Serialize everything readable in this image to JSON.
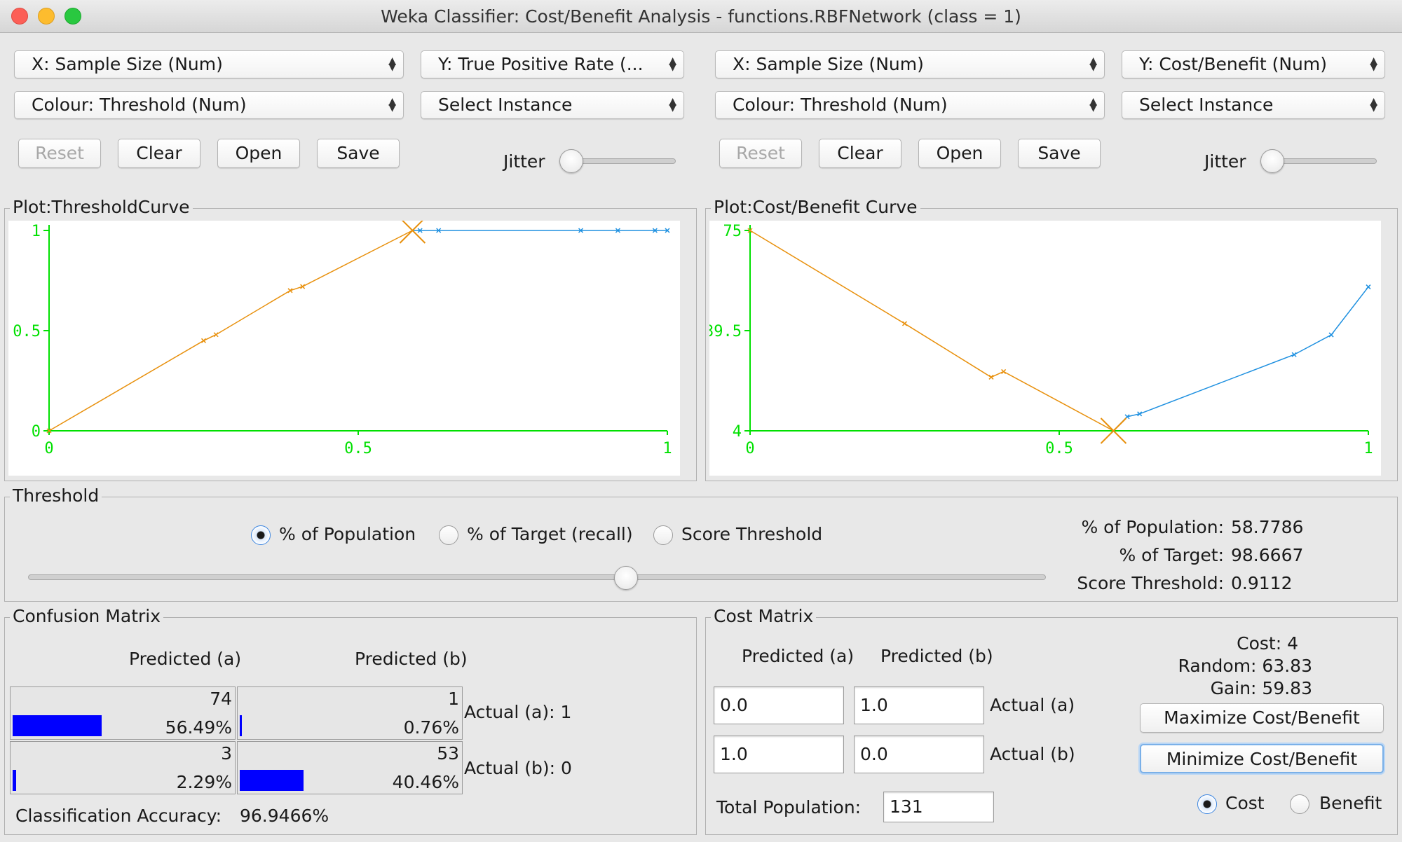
{
  "window": {
    "title": "Weka Classifier: Cost/Benefit Analysis - functions.RBFNetwork (class = 1)"
  },
  "left_panel": {
    "x_axis": "X: Sample Size (Num)",
    "y_axis": "Y: True Positive Rate (...",
    "colour": "Colour: Threshold (Num)",
    "select_instance": "Select Instance",
    "buttons": {
      "reset": "Reset",
      "clear": "Clear",
      "open": "Open",
      "save": "Save"
    },
    "jitter_label": "Jitter",
    "plot_title": "Plot:ThresholdCurve"
  },
  "right_panel": {
    "x_axis": "X: Sample Size (Num)",
    "y_axis": "Y: Cost/Benefit (Num)",
    "colour": "Colour: Threshold (Num)",
    "select_instance": "Select Instance",
    "buttons": {
      "reset": "Reset",
      "clear": "Clear",
      "open": "Open",
      "save": "Save"
    },
    "jitter_label": "Jitter",
    "plot_title": "Plot:Cost/Benefit Curve"
  },
  "chart_data": [
    {
      "type": "line",
      "title": "Plot:ThresholdCurve",
      "xlabel": "Sample Size",
      "ylabel": "True Positive Rate",
      "x_ticks": [
        "0",
        "0.5",
        "1"
      ],
      "y_ticks": [
        "0",
        "0.5",
        "1"
      ],
      "xlim": [
        0,
        1
      ],
      "ylim": [
        0,
        1
      ],
      "series": [
        {
          "color": "#e8900c",
          "x": [
            0,
            0.25,
            0.27,
            0.39,
            0.41,
            0.5878
          ],
          "y": [
            0,
            0.45,
            0.48,
            0.7,
            0.72,
            1.0
          ]
        },
        {
          "color": "#1e90e0",
          "x": [
            0.5878,
            0.6,
            0.63,
            0.86,
            0.92,
            0.98,
            1.0
          ],
          "y": [
            1.0,
            1.0,
            1.0,
            1.0,
            1.0,
            1.0,
            1.0
          ]
        }
      ],
      "marker": {
        "x": 0.5878,
        "y": 1.0,
        "symbol": "X"
      }
    },
    {
      "type": "line",
      "title": "Plot:Cost/Benefit Curve",
      "xlabel": "Sample Size",
      "ylabel": "Cost/Benefit",
      "x_ticks": [
        "0",
        "0.5",
        "1"
      ],
      "y_ticks": [
        "4",
        "39.5",
        "75"
      ],
      "xlim": [
        0,
        1
      ],
      "ylim": [
        4,
        75
      ],
      "series": [
        {
          "color": "#e8900c",
          "x": [
            0,
            0.25,
            0.39,
            0.41,
            0.5878
          ],
          "y": [
            75,
            42,
            23,
            25,
            4
          ]
        },
        {
          "color": "#1e90e0",
          "x": [
            0.5878,
            0.61,
            0.63,
            0.88,
            0.94,
            1.0
          ],
          "y": [
            4,
            9,
            10,
            31,
            38,
            55
          ]
        }
      ],
      "marker": {
        "x": 0.5878,
        "y": 4,
        "symbol": "X"
      }
    }
  ],
  "threshold": {
    "title": "Threshold",
    "options": [
      "% of Population",
      "% of Target (recall)",
      "Score Threshold"
    ],
    "selected": 0,
    "slider_fraction": 0.5878,
    "stats": {
      "population_label": "% of Population:",
      "population_value": "58.7786",
      "target_label": "% of Target:",
      "target_value": "98.6667",
      "score_label": "Score Threshold:",
      "score_value": "0.9112"
    }
  },
  "confusion": {
    "title": "Confusion Matrix",
    "col_a": "Predicted (a)",
    "col_b": "Predicted (b)",
    "cells": [
      {
        "count": "74",
        "pct": "56.49%",
        "fraction": 0.5649
      },
      {
        "count": "1",
        "pct": "0.76%",
        "fraction": 0.0076
      },
      {
        "count": "3",
        "pct": "2.29%",
        "fraction": 0.0229
      },
      {
        "count": "53",
        "pct": "40.46%",
        "fraction": 0.4046
      }
    ],
    "row_a": "Actual (a): 1",
    "row_b": "Actual (b):  0",
    "accuracy_label": "Classification Accuracy:",
    "accuracy_value": "96.9466%"
  },
  "cost": {
    "title": "Cost Matrix",
    "col_a": "Predicted (a)",
    "col_b": "Predicted (b)",
    "values": [
      "0.0",
      "1.0",
      "1.0",
      "0.0"
    ],
    "row_a": "Actual (a)",
    "row_b": "Actual (b)",
    "total_label": "Total Population:",
    "total_value": "131",
    "cost_line": "Cost: 4",
    "random_line": "Random: 63.83",
    "gain_line": "Gain: 59.83",
    "maximize": "Maximize Cost/Benefit",
    "minimize": "Minimize Cost/Benefit",
    "radio_cost": "Cost",
    "radio_benefit": "Benefit"
  }
}
